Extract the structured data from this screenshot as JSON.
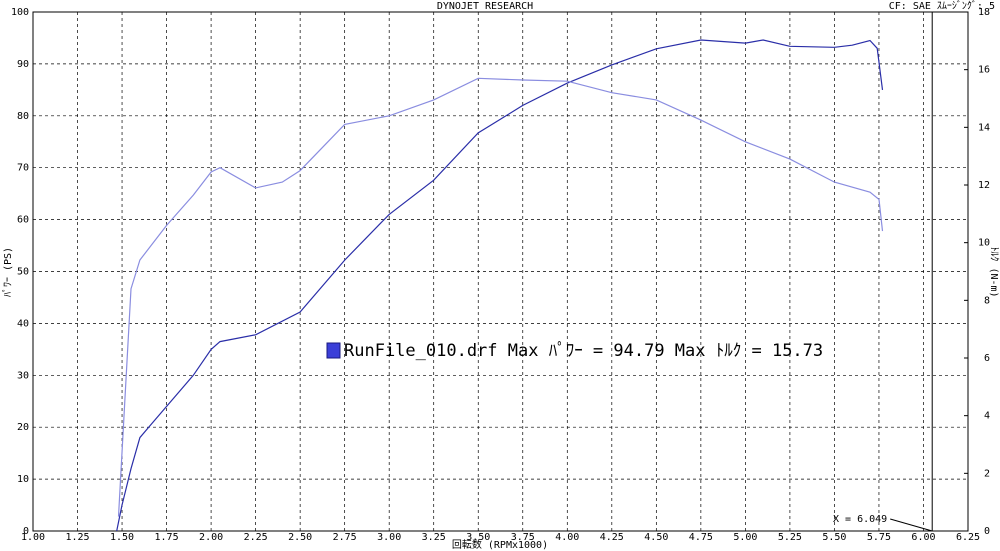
{
  "chart_data": {
    "type": "line",
    "title": "DYNOJET RESEARCH",
    "subtitle": "CF: SAE  ｽﾑｰｼﾞﾝｸﾞ: 5",
    "x_label": "回転数 (RPMx1000)",
    "y_label": "ﾊﾟﾜｰ (PS)",
    "y2_label": "ﾄﾙｸ (N-m)",
    "annotation": "RunFile_010.drf Max ﾊﾟﾜｰ = 94.79     Max ﾄﾙｸ = 15.73",
    "cursor": {
      "value": 6.049,
      "label": "X = 6.049"
    },
    "grid": true,
    "xlim": [
      1,
      6.25
    ],
    "xticks": [
      {
        "value": 1,
        "label": "1.00"
      },
      {
        "value": 1.25,
        "label": "1.25"
      },
      {
        "value": 1.5,
        "label": "1.50"
      },
      {
        "value": 1.75,
        "label": "1.75"
      },
      {
        "value": 2,
        "label": "2.00"
      },
      {
        "value": 2.25,
        "label": "2.25"
      },
      {
        "value": 2.5,
        "label": "2.50"
      },
      {
        "value": 2.75,
        "label": "2.75"
      },
      {
        "value": 3,
        "label": "3.00"
      },
      {
        "value": 3.25,
        "label": "3.25"
      },
      {
        "value": 3.5,
        "label": "3.50"
      },
      {
        "value": 3.75,
        "label": "3.75"
      },
      {
        "value": 4,
        "label": "4.00"
      },
      {
        "value": 4.25,
        "label": "4.25"
      },
      {
        "value": 4.5,
        "label": "4.50"
      },
      {
        "value": 4.75,
        "label": "4.75"
      },
      {
        "value": 5,
        "label": "5.00"
      },
      {
        "value": 5.25,
        "label": "5.25"
      },
      {
        "value": 5.5,
        "label": "5.50"
      },
      {
        "value": 5.75,
        "label": "5.75"
      },
      {
        "value": 6,
        "label": "6.00"
      },
      {
        "value": 6.25,
        "label": "6.25"
      }
    ],
    "ylim": [
      0,
      100
    ],
    "yticks": [
      0,
      10,
      20,
      30,
      40,
      50,
      60,
      70,
      80,
      90,
      100
    ],
    "y2lim": [
      0,
      18
    ],
    "y2ticks": [
      0,
      2,
      4,
      6,
      8,
      10,
      12,
      14,
      16,
      18
    ],
    "series": [
      {
        "color": "#2a2ea8",
        "axis": "y",
        "x": [
          1.47,
          1.5,
          1.55,
          1.6,
          1.66,
          1.75,
          1.9,
          2.0,
          2.05,
          2.25,
          2.5,
          2.75,
          3.0,
          3.25,
          3.5,
          3.75,
          4.0,
          4.25,
          4.5,
          4.75,
          5.0,
          5.1,
          5.25,
          5.5,
          5.6,
          5.7,
          5.74,
          5.77
        ],
        "values": [
          0,
          5,
          12,
          18,
          20.4,
          24,
          30,
          35,
          36.5,
          37.8,
          42.2,
          52.2,
          61,
          67.6,
          76.7,
          82,
          86.3,
          89.8,
          92.9,
          94.6,
          94,
          94.6,
          93.4,
          93.2,
          93.6,
          94.5,
          93,
          85
        ]
      },
      {
        "color": "#8a8de0",
        "axis": "y2",
        "x": [
          1.48,
          1.52,
          1.55,
          1.6,
          1.75,
          1.9,
          2.0,
          2.05,
          2.25,
          2.4,
          2.5,
          2.75,
          3.0,
          3.25,
          3.5,
          3.75,
          4.0,
          4.25,
          4.5,
          4.75,
          5.0,
          5.25,
          5.5,
          5.7,
          5.75,
          5.77
        ],
        "values": [
          0.5,
          5,
          8.4,
          9.4,
          10.6,
          11.65,
          12.45,
          12.6,
          11.9,
          12.1,
          12.5,
          14.1,
          14.4,
          14.95,
          15.7,
          15.64,
          15.6,
          15.2,
          14.95,
          14.25,
          13.5,
          12.9,
          12.1,
          11.75,
          11.5,
          10.4
        ]
      }
    ]
  }
}
